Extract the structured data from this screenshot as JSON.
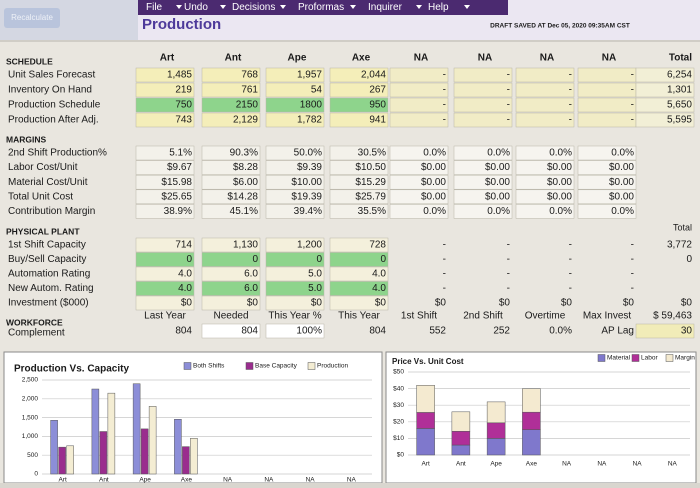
{
  "menu": [
    "File",
    "Undo",
    "Decisions",
    "Proformas",
    "Inquirer",
    "Help"
  ],
  "recalculate": "Recalculate",
  "title": "Production",
  "draft": "DRAFT SAVED AT Dec 05, 2020 09:35AM CST",
  "columns": [
    "Art",
    "Ant",
    "Ape",
    "Axe",
    "NA",
    "NA",
    "NA",
    "NA",
    "Total"
  ],
  "sections": [
    {
      "title": "SCHEDULE",
      "rows": [
        {
          "label": "Unit Sales Forecast",
          "cells": [
            "1,485",
            "768",
            "1,957",
            "2,044",
            "-",
            "-",
            "-",
            "-",
            "6,254"
          ]
        },
        {
          "label": "Inventory On Hand",
          "cells": [
            "219",
            "761",
            "54",
            "267",
            "-",
            "-",
            "-",
            "-",
            "1,301"
          ]
        },
        {
          "label": "Production Schedule",
          "cells": [
            "750",
            "2150",
            "1800",
            "950",
            "-",
            "-",
            "-",
            "-",
            "5,650"
          ]
        },
        {
          "label": "Production After Adj.",
          "cells": [
            "743",
            "2,129",
            "1,782",
            "941",
            "-",
            "-",
            "-",
            "-",
            "5,595"
          ]
        }
      ]
    },
    {
      "title": "MARGINS",
      "rows": [
        {
          "label": "2nd Shift Production%",
          "cells": [
            "5.1%",
            "90.3%",
            "50.0%",
            "30.5%",
            "0.0%",
            "0.0%",
            "0.0%",
            "0.0%"
          ]
        },
        {
          "label": "Labor Cost/Unit",
          "cells": [
            "$9.67",
            "$8.28",
            "$9.39",
            "$10.50",
            "$0.00",
            "$0.00",
            "$0.00",
            "$0.00"
          ]
        },
        {
          "label": "Material Cost/Unit",
          "cells": [
            "$15.98",
            "$6.00",
            "$10.00",
            "$15.29",
            "$0.00",
            "$0.00",
            "$0.00",
            "$0.00"
          ]
        },
        {
          "label": "Total Unit Cost",
          "cells": [
            "$25.65",
            "$14.28",
            "$19.39",
            "$25.79",
            "$0.00",
            "$0.00",
            "$0.00",
            "$0.00"
          ]
        },
        {
          "label": "Contribution Margin",
          "cells": [
            "38.9%",
            "45.1%",
            "39.4%",
            "35.5%",
            "0.0%",
            "0.0%",
            "0.0%",
            "0.0%"
          ]
        }
      ]
    },
    {
      "title": "PHYSICAL PLANT",
      "total_label": "Total",
      "rows": [
        {
          "label": "1st Shift Capacity",
          "cells": [
            "714",
            "1,130",
            "1,200",
            "728",
            "-",
            "-",
            "-",
            "-",
            "3,772"
          ]
        },
        {
          "label": "Buy/Sell Capacity",
          "cells": [
            "0",
            "0",
            "0",
            "0",
            "-",
            "-",
            "-",
            "-",
            "0"
          ]
        },
        {
          "label": "Automation Rating",
          "cells": [
            "4.0",
            "6.0",
            "5.0",
            "4.0",
            "-",
            "-",
            "-",
            "-"
          ]
        },
        {
          "label": "New Autom. Rating",
          "cells": [
            "4.0",
            "6.0",
            "5.0",
            "4.0",
            "-",
            "-",
            "-",
            "-"
          ]
        },
        {
          "label": "Investment ($000)",
          "cells": [
            "$0",
            "$0",
            "$0",
            "$0",
            "$0",
            "$0",
            "$0",
            "$0",
            "$0"
          ]
        }
      ]
    },
    {
      "title": "WORKFORCE",
      "rows": [
        {
          "cells": [
            "Last Year",
            "Needed",
            "This Year %",
            "This Year",
            "1st Shift",
            "2nd Shift",
            "Overtime",
            "Max Invest",
            "$ 59,463"
          ]
        },
        {
          "label": "Complement",
          "cells": [
            "804",
            "804",
            "100%",
            "804",
            "552",
            "252",
            "0.0%",
            "AP Lag",
            "30"
          ]
        }
      ]
    }
  ],
  "charts": [
    {
      "type": "bar",
      "title": "Production Vs. Capacity",
      "categories": [
        "Art",
        "Ant",
        "Ape",
        "Axe",
        "NA",
        "NA",
        "NA",
        "NA"
      ],
      "series": [
        {
          "name": "Both Shifts",
          "color": "#8c8ed8",
          "values": [
            1428,
            2260,
            2400,
            1456,
            0,
            0,
            0,
            0
          ]
        },
        {
          "name": "Base Capacity",
          "color": "#9a2d8e",
          "values": [
            714,
            1130,
            1200,
            728,
            0,
            0,
            0,
            0
          ]
        },
        {
          "name": "Production",
          "color": "#f4edd3",
          "values": [
            750,
            2150,
            1800,
            950,
            0,
            0,
            0,
            0
          ]
        }
      ],
      "ylim": [
        0,
        2500
      ],
      "yticks": [
        0,
        500,
        {
          "value": 1000,
          "label": "1,000"
        },
        {
          "value": 1500,
          "label": "1,500"
        },
        {
          "value": 2000,
          "label": "2,000"
        },
        {
          "value": 2500,
          "label": "2,500"
        }
      ]
    },
    {
      "type": "stacked_bar",
      "title": "Price Vs. Unit Cost",
      "categories": [
        "Art",
        "Ant",
        "Ape",
        "Axe",
        "NA",
        "NA",
        "NA",
        "NA"
      ],
      "series": [
        {
          "name": "Material",
          "color": "#7f78cc",
          "values": [
            15.98,
            6,
            10,
            15.29,
            0,
            0,
            0,
            0
          ]
        },
        {
          "name": "Labor",
          "color": "#b02f98",
          "values": [
            9.67,
            8.28,
            9.39,
            10.5,
            0,
            0,
            0,
            0
          ]
        },
        {
          "name": "Margin",
          "color": "#f4ead0",
          "values": [
            16.33,
            11.73,
            12.61,
            14.19,
            0,
            0,
            0,
            0
          ]
        }
      ],
      "ylim": [
        0,
        50
      ],
      "yticks": [
        {
          "value": 0,
          "label": "$0"
        },
        {
          "value": 10,
          "label": "$10"
        },
        {
          "value": 20,
          "label": "$20"
        },
        {
          "value": 30,
          "label": "$30"
        },
        {
          "value": 40,
          "label": "$40"
        },
        {
          "value": 50,
          "label": "$50"
        }
      ]
    }
  ]
}
